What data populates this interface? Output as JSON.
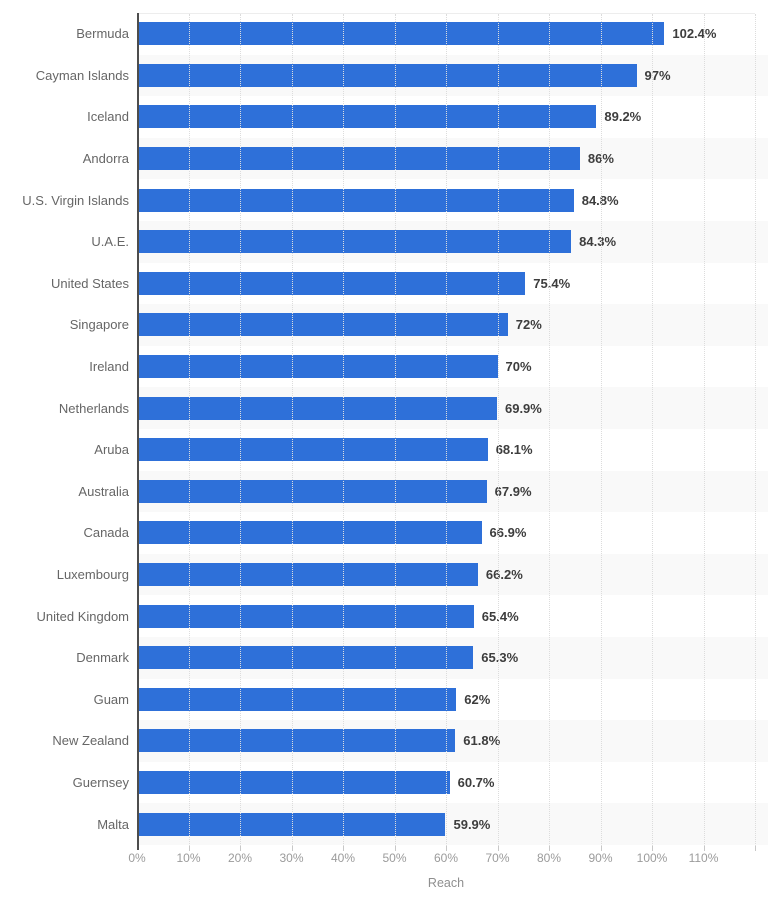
{
  "chart_data": {
    "type": "bar",
    "orientation": "horizontal",
    "title": "",
    "xlabel": "Reach",
    "ylabel": "",
    "categories": [
      "Bermuda",
      "Cayman Islands",
      "Iceland",
      "Andorra",
      "U.S. Virgin Islands",
      "U.A.E.",
      "United States",
      "Singapore",
      "Ireland",
      "Netherlands",
      "Aruba",
      "Australia",
      "Canada",
      "Luxembourg",
      "United Kingdom",
      "Denmark",
      "Guam",
      "New Zealand",
      "Guernsey",
      "Malta"
    ],
    "values": [
      102.4,
      97,
      89.2,
      86,
      84.8,
      84.3,
      75.4,
      72,
      70,
      69.9,
      68.1,
      67.9,
      66.9,
      66.2,
      65.4,
      65.3,
      62,
      61.8,
      60.7,
      59.9
    ],
    "value_labels": [
      "102.4%",
      "97%",
      "89.2%",
      "86%",
      "84.8%",
      "84.3%",
      "75.4%",
      "72%",
      "70%",
      "69.9%",
      "68.1%",
      "67.9%",
      "66.9%",
      "66.2%",
      "65.4%",
      "65.3%",
      "62%",
      "61.8%",
      "60.7%",
      "59.9%"
    ],
    "xlim": [
      0,
      120
    ],
    "x_ticks": [
      0,
      10,
      20,
      30,
      40,
      50,
      60,
      70,
      80,
      90,
      100,
      110
    ],
    "x_tick_labels": [
      "0%",
      "10%",
      "20%",
      "30%",
      "40%",
      "50%",
      "60%",
      "70%",
      "80%",
      "90%",
      "100%",
      "110%"
    ],
    "grid": "vertical-dotted",
    "legend": "none",
    "colors": {
      "bar": "#2e70d9",
      "row_band": "#f9f9f9",
      "value_label": "#3d3d3d",
      "category_label": "#666666",
      "tick_label": "#9b9b9b",
      "axis_title": "#8f8f8f",
      "axis_line": "#4d4d4d",
      "gridline": "#dcdcdc"
    }
  }
}
